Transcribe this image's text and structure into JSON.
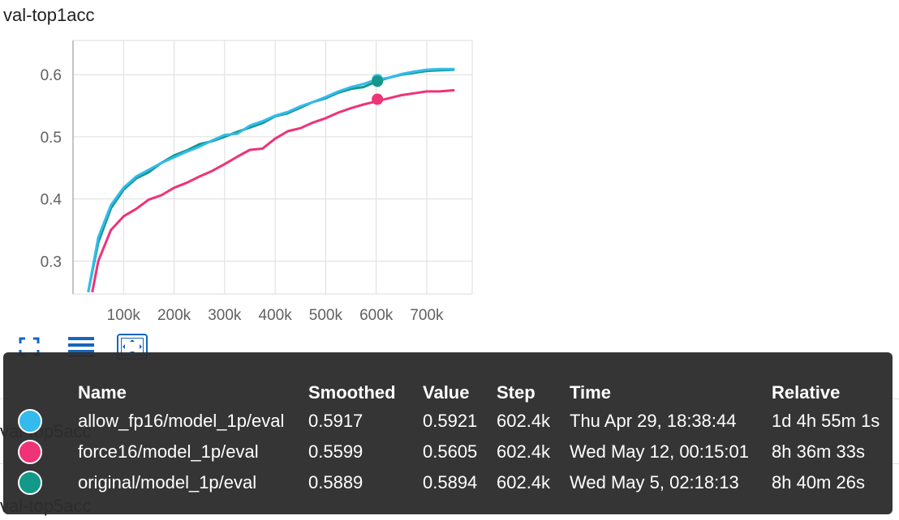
{
  "chart_data": {
    "type": "line",
    "title": "val-top1acc",
    "xlabel": "",
    "ylabel": "",
    "xlim": [
      0,
      790000
    ],
    "ylim": [
      0.247,
      0.655
    ],
    "x_ticks": [
      100000,
      200000,
      300000,
      400000,
      500000,
      600000,
      700000
    ],
    "x_tick_labels": [
      "100k",
      "200k",
      "300k",
      "400k",
      "500k",
      "600k",
      "700k"
    ],
    "y_ticks": [
      0.3,
      0.4,
      0.5,
      0.6
    ],
    "y_tick_labels": [
      "0.3",
      "0.4",
      "0.5",
      "0.6"
    ],
    "grid": true,
    "series": [
      {
        "name": "original/model_1p/eval",
        "color": "#129989",
        "x": [
          30000,
          50000,
          75000,
          100000,
          125000,
          150000,
          175000,
          200000,
          225000,
          250000,
          275000,
          300000,
          325000,
          350000,
          375000,
          400000,
          425000,
          450000,
          475000,
          500000,
          525000,
          550000,
          575000,
          600000,
          625000,
          650000,
          675000,
          700000,
          725000,
          755000
        ],
        "y": [
          0.25,
          0.33,
          0.385,
          0.415,
          0.433,
          0.443,
          0.458,
          0.47,
          0.478,
          0.488,
          0.493,
          0.5,
          0.508,
          0.515,
          0.522,
          0.533,
          0.538,
          0.547,
          0.556,
          0.562,
          0.571,
          0.577,
          0.58,
          0.589,
          0.595,
          0.6,
          0.603,
          0.606,
          0.607,
          0.608
        ]
      },
      {
        "name": "allow_fp16/model_1p/eval",
        "color": "#33bbee",
        "x": [
          30000,
          50000,
          75000,
          100000,
          125000,
          150000,
          175000,
          200000,
          225000,
          250000,
          275000,
          300000,
          325000,
          350000,
          375000,
          400000,
          425000,
          450000,
          475000,
          500000,
          525000,
          550000,
          575000,
          600000,
          625000,
          650000,
          675000,
          700000,
          725000,
          755000
        ],
        "y": [
          0.25,
          0.338,
          0.39,
          0.418,
          0.436,
          0.447,
          0.458,
          0.467,
          0.476,
          0.484,
          0.494,
          0.503,
          0.505,
          0.518,
          0.525,
          0.534,
          0.54,
          0.549,
          0.556,
          0.564,
          0.573,
          0.58,
          0.585,
          0.592,
          0.595,
          0.601,
          0.605,
          0.608,
          0.609,
          0.609
        ]
      },
      {
        "name": "force16/model_1p/eval",
        "color": "#ee3377",
        "x": [
          38000,
          50000,
          75000,
          100000,
          125000,
          150000,
          175000,
          200000,
          225000,
          250000,
          275000,
          300000,
          325000,
          350000,
          375000,
          400000,
          425000,
          450000,
          475000,
          500000,
          525000,
          550000,
          575000,
          600000,
          625000,
          650000,
          675000,
          700000,
          725000,
          755000
        ],
        "y": [
          0.25,
          0.3,
          0.35,
          0.372,
          0.384,
          0.399,
          0.406,
          0.418,
          0.426,
          0.436,
          0.445,
          0.456,
          0.468,
          0.479,
          0.481,
          0.497,
          0.509,
          0.514,
          0.523,
          0.53,
          0.539,
          0.546,
          0.552,
          0.557,
          0.562,
          0.567,
          0.57,
          0.573,
          0.573,
          0.575
        ]
      }
    ],
    "highlight_step": 602400
  },
  "toolbar": {
    "icons": [
      "fullscreen-icon",
      "data-table-icon",
      "fit-domain-icon"
    ]
  },
  "other_cards": {
    "label_1": "val-top5acc",
    "label_2": "val-top5acc"
  },
  "tooltip": {
    "headers": {
      "name": "Name",
      "smoothed": "Smoothed",
      "value": "Value",
      "step": "Step",
      "time": "Time",
      "relative": "Relative"
    },
    "rows": [
      {
        "color": "#33bbee",
        "name": "allow_fp16/model_1p/eval",
        "smoothed": "0.5917",
        "value": "0.5921",
        "step": "602.4k",
        "time": "Thu Apr 29, 18:38:44",
        "relative": "1d 4h 55m 1s"
      },
      {
        "color": "#ee3377",
        "name": "force16/model_1p/eval",
        "smoothed": "0.5599",
        "value": "0.5605",
        "step": "602.4k",
        "time": "Wed May 12, 00:15:01",
        "relative": "8h 36m 33s"
      },
      {
        "color": "#129989",
        "name": "original/model_1p/eval",
        "smoothed": "0.5889",
        "value": "0.5894",
        "step": "602.4k",
        "time": "Wed May 5, 02:18:13",
        "relative": "8h 40m 26s"
      }
    ]
  }
}
